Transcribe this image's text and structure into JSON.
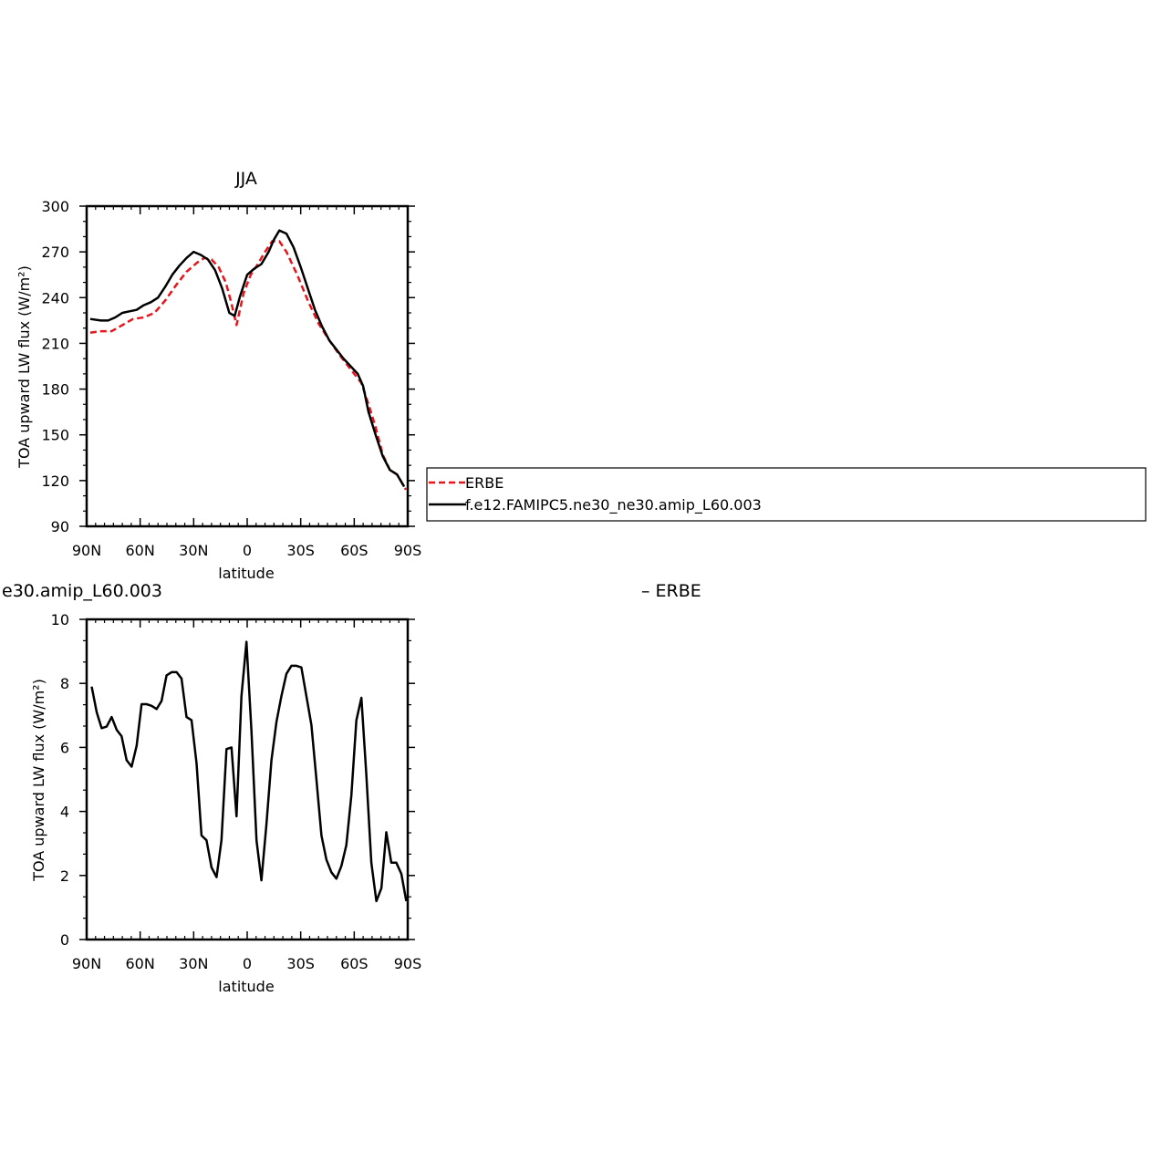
{
  "chart_data": [
    {
      "type": "line",
      "title": "JJA",
      "xlabel": "latitude",
      "ylabel": "TOA upward LW flux (W/m²)",
      "xticks": [
        "90N",
        "60N",
        "30N",
        "0",
        "30S",
        "60S",
        "90S"
      ],
      "yticks": [
        "90",
        "120",
        "150",
        "180",
        "210",
        "240",
        "270",
        "300"
      ],
      "xlim": [
        90,
        -90
      ],
      "ylim": [
        90,
        300
      ],
      "legend_position": "right",
      "legend": [
        "ERBE",
        "f.e12.FAMIPC5.ne30_ne30.amip_L60.003"
      ],
      "series": [
        {
          "name": "ERBE",
          "color": "#e8141b",
          "dash": "dashed",
          "x": [
            88,
            82,
            76,
            70,
            64,
            58,
            52,
            46,
            40,
            34,
            28,
            24,
            20,
            16,
            12,
            9,
            6,
            2,
            -2,
            -6,
            -10,
            -14,
            -18,
            -22,
            -28,
            -34,
            -40,
            -46,
            -52,
            -58,
            -64,
            -68,
            -72,
            -76,
            -80,
            -84,
            -89
          ],
          "y": [
            217,
            218,
            218,
            222,
            226,
            227,
            230,
            238,
            248,
            257,
            263,
            266,
            265,
            260,
            250,
            237,
            222,
            243,
            255,
            262,
            270,
            277,
            277,
            270,
            255,
            238,
            223,
            212,
            202,
            193,
            184,
            170,
            155,
            137,
            127,
            124,
            114
          ]
        },
        {
          "name": "f.e12.FAMIPC5.ne30_ne30.amip_L60.003",
          "color": "#000000",
          "dash": "solid",
          "x": [
            88,
            82,
            78,
            74,
            70,
            66,
            62,
            58,
            54,
            50,
            46,
            42,
            38,
            34,
            30,
            26,
            22,
            18,
            14,
            10,
            7,
            4,
            0,
            -4,
            -8,
            -12,
            -15,
            -18,
            -22,
            -26,
            -30,
            -34,
            -38,
            -42,
            -46,
            -50,
            -54,
            -58,
            -62,
            -65,
            -68,
            -72,
            -76,
            -80,
            -84,
            -88
          ],
          "y": [
            226,
            225,
            225,
            227,
            230,
            231,
            232,
            235,
            237,
            240,
            247,
            255,
            261,
            266,
            270,
            268,
            265,
            258,
            246,
            230,
            228,
            241,
            255,
            259,
            262,
            270,
            278,
            284,
            282,
            273,
            260,
            246,
            232,
            221,
            212,
            206,
            200,
            195,
            190,
            182,
            165,
            150,
            136,
            127,
            124,
            116
          ]
        }
      ]
    },
    {
      "type": "line",
      "title": "e30.amip_L60.003",
      "title_right": "– ERBE",
      "xlabel": "latitude",
      "ylabel": "TOA upward LW flux (W/m²)",
      "xticks": [
        "90N",
        "60N",
        "30N",
        "0",
        "30S",
        "60S",
        "90S"
      ],
      "yticks": [
        "0",
        "2",
        "4",
        "6",
        "8",
        "10"
      ],
      "xlim": [
        90,
        -90
      ],
      "ylim": [
        0,
        10
      ],
      "series": [
        {
          "color": "#000000",
          "x": [
            87.2,
            84.4,
            81.6,
            78.8,
            76.0,
            73.2,
            70.4,
            67.6,
            64.8,
            62.0,
            59.2,
            56.4,
            53.6,
            50.8,
            48.0,
            45.2,
            42.4,
            39.6,
            36.8,
            34.0,
            31.2,
            28.4,
            25.6,
            22.8,
            20.0,
            17.2,
            14.4,
            11.6,
            8.8,
            6.0,
            3.2,
            0.4,
            -2.4,
            -5.2,
            -8.0,
            -10.8,
            -13.6,
            -16.4,
            -19.2,
            -22.0,
            -24.8,
            -27.6,
            -30.4,
            -33.2,
            -36.0,
            -38.8,
            -41.6,
            -44.4,
            -47.2,
            -50.0,
            -52.8,
            -55.6,
            -58.4,
            -61.2,
            -64.0,
            -66.8,
            -69.6,
            -72.4,
            -75.2,
            -78.0,
            -80.8,
            -83.6,
            -86.4,
            -89.2
          ],
          "y": [
            7.9,
            7.1,
            6.6,
            6.65,
            6.95,
            6.55,
            6.35,
            5.6,
            5.4,
            6.05,
            7.35,
            7.35,
            7.3,
            7.2,
            7.45,
            8.25,
            8.35,
            8.35,
            8.15,
            6.95,
            6.85,
            5.5,
            3.25,
            3.1,
            2.25,
            1.95,
            3.1,
            5.95,
            6.0,
            3.85,
            7.6,
            9.3,
            6.5,
            3.1,
            1.85,
            3.6,
            5.6,
            6.8,
            7.6,
            8.3,
            8.55,
            8.55,
            8.5,
            7.6,
            6.7,
            5.0,
            3.25,
            2.5,
            2.1,
            1.9,
            2.3,
            2.95,
            4.5,
            6.85,
            7.55,
            5.15,
            2.4,
            1.2,
            1.6,
            3.35,
            2.4,
            2.4,
            2.05,
            1.2
          ]
        }
      ]
    }
  ]
}
